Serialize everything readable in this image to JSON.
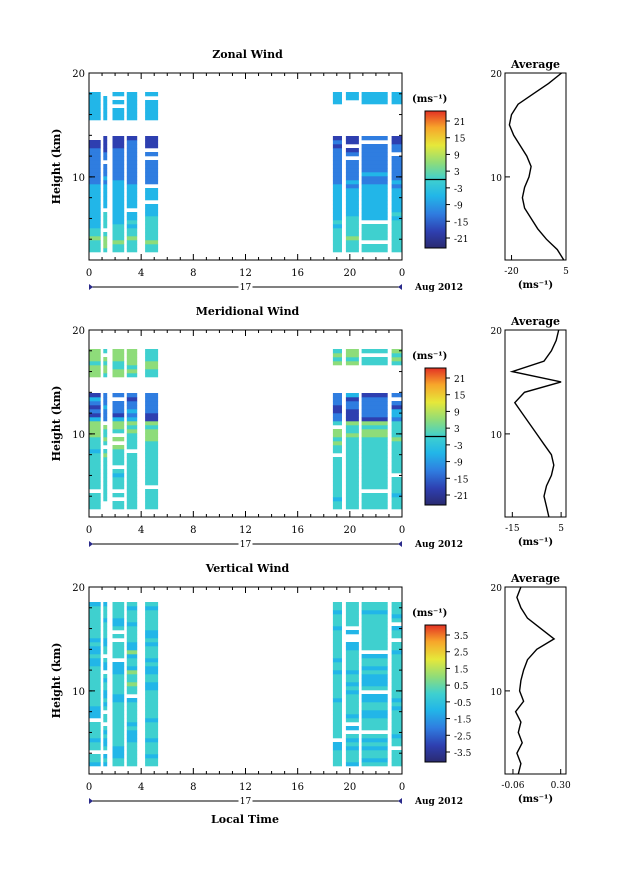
{
  "figure": {
    "date_label": "Aug 2012",
    "day_label": "17",
    "xlabel": "Local Time",
    "ylabel": "Height (km)",
    "unit_label": "(ms⁻¹)",
    "average_title": "Average"
  },
  "chart_data": [
    {
      "type": "heatmap",
      "title": "Zonal Wind",
      "x_ticks": [
        "0",
        "4",
        "8",
        "12",
        "16",
        "20",
        "0"
      ],
      "y_ticks": [
        "20",
        "10"
      ],
      "ylim": [
        2,
        20
      ],
      "data_intervals_hours": [
        [
          0,
          0.9
        ],
        [
          1.1,
          1.4
        ],
        [
          1.8,
          2.7
        ],
        [
          2.9,
          3.7
        ],
        [
          4.3,
          5.3
        ],
        [
          18.7,
          19.4
        ],
        [
          19.7,
          20.7
        ],
        [
          20.9,
          22.9
        ],
        [
          23.2,
          24
        ]
      ],
      "colorbar": {
        "ticks": [
          "21",
          "15",
          "9",
          "3",
          "-3",
          "-9",
          "-15",
          "-21"
        ],
        "range": [
          -24,
          24
        ]
      },
      "average_profile": {
        "x_ticks": [
          "-20",
          "5"
        ],
        "xlim": [
          -23,
          5
        ],
        "heights": [
          2,
          3,
          4,
          5,
          6,
          7,
          8,
          9,
          10,
          11,
          12,
          13,
          14,
          15,
          16,
          17,
          18,
          19,
          20
        ],
        "values": [
          4,
          1,
          -4,
          -8,
          -11,
          -14,
          -15,
          -14,
          -12,
          -11,
          -13,
          -16,
          -19,
          -21,
          -20,
          -17,
          -10,
          -3,
          3
        ]
      }
    },
    {
      "type": "heatmap",
      "title": "Meridional Wind",
      "x_ticks": [
        "0",
        "4",
        "8",
        "12",
        "16",
        "20",
        "0"
      ],
      "y_ticks": [
        "20",
        "10"
      ],
      "ylim": [
        2,
        20
      ],
      "data_intervals_hours": [
        [
          0,
          0.9
        ],
        [
          1.1,
          1.4
        ],
        [
          1.8,
          2.7
        ],
        [
          2.9,
          3.7
        ],
        [
          4.3,
          5.3
        ],
        [
          18.7,
          19.4
        ],
        [
          19.7,
          20.7
        ],
        [
          20.9,
          22.9
        ],
        [
          23.2,
          24
        ]
      ],
      "colorbar": {
        "ticks": [
          "21",
          "15",
          "9",
          "3",
          "-3",
          "-9",
          "-15",
          "-21"
        ],
        "range": [
          -24,
          24
        ]
      },
      "average_profile": {
        "x_ticks": [
          "-15",
          "5"
        ],
        "xlim": [
          -18,
          7
        ],
        "heights": [
          2,
          3,
          4,
          5,
          6,
          7,
          8,
          9,
          10,
          11,
          12,
          13,
          14,
          15,
          16,
          17,
          18,
          19,
          20
        ],
        "values": [
          0,
          -1,
          -2,
          -1,
          1,
          2,
          1,
          -2,
          -5,
          -8,
          -11,
          -14,
          -10,
          5,
          -15,
          -2,
          1,
          3,
          4
        ]
      }
    },
    {
      "type": "heatmap",
      "title": "Vertical Wind",
      "x_ticks": [
        "0",
        "4",
        "8",
        "12",
        "16",
        "20",
        "0"
      ],
      "y_ticks": [
        "20",
        "10"
      ],
      "ylim": [
        2,
        20
      ],
      "data_intervals_hours": [
        [
          0,
          0.9
        ],
        [
          1.1,
          1.4
        ],
        [
          1.8,
          2.7
        ],
        [
          2.9,
          3.7
        ],
        [
          4.3,
          5.3
        ],
        [
          18.7,
          19.4
        ],
        [
          19.7,
          20.7
        ],
        [
          20.9,
          22.9
        ],
        [
          23.2,
          24
        ]
      ],
      "colorbar": {
        "ticks": [
          "3.5",
          "2.5",
          "1.5",
          "0.5",
          "-0.5",
          "-1.5",
          "-2.5",
          "-3.5"
        ],
        "range": [
          -4,
          4
        ]
      },
      "average_profile": {
        "x_ticks": [
          "-0.06",
          "0.30"
        ],
        "xlim": [
          -0.12,
          0.34
        ],
        "heights": [
          2,
          3,
          4,
          5,
          6,
          7,
          8,
          9,
          10,
          11,
          12,
          13,
          14,
          15,
          16,
          17,
          18,
          19,
          20
        ],
        "values": [
          -0.02,
          0.0,
          -0.03,
          0.01,
          -0.02,
          0.0,
          -0.04,
          0.02,
          -0.01,
          0.0,
          0.02,
          0.05,
          0.12,
          0.25,
          0.15,
          0.05,
          0.0,
          -0.03,
          0.0
        ]
      }
    }
  ]
}
